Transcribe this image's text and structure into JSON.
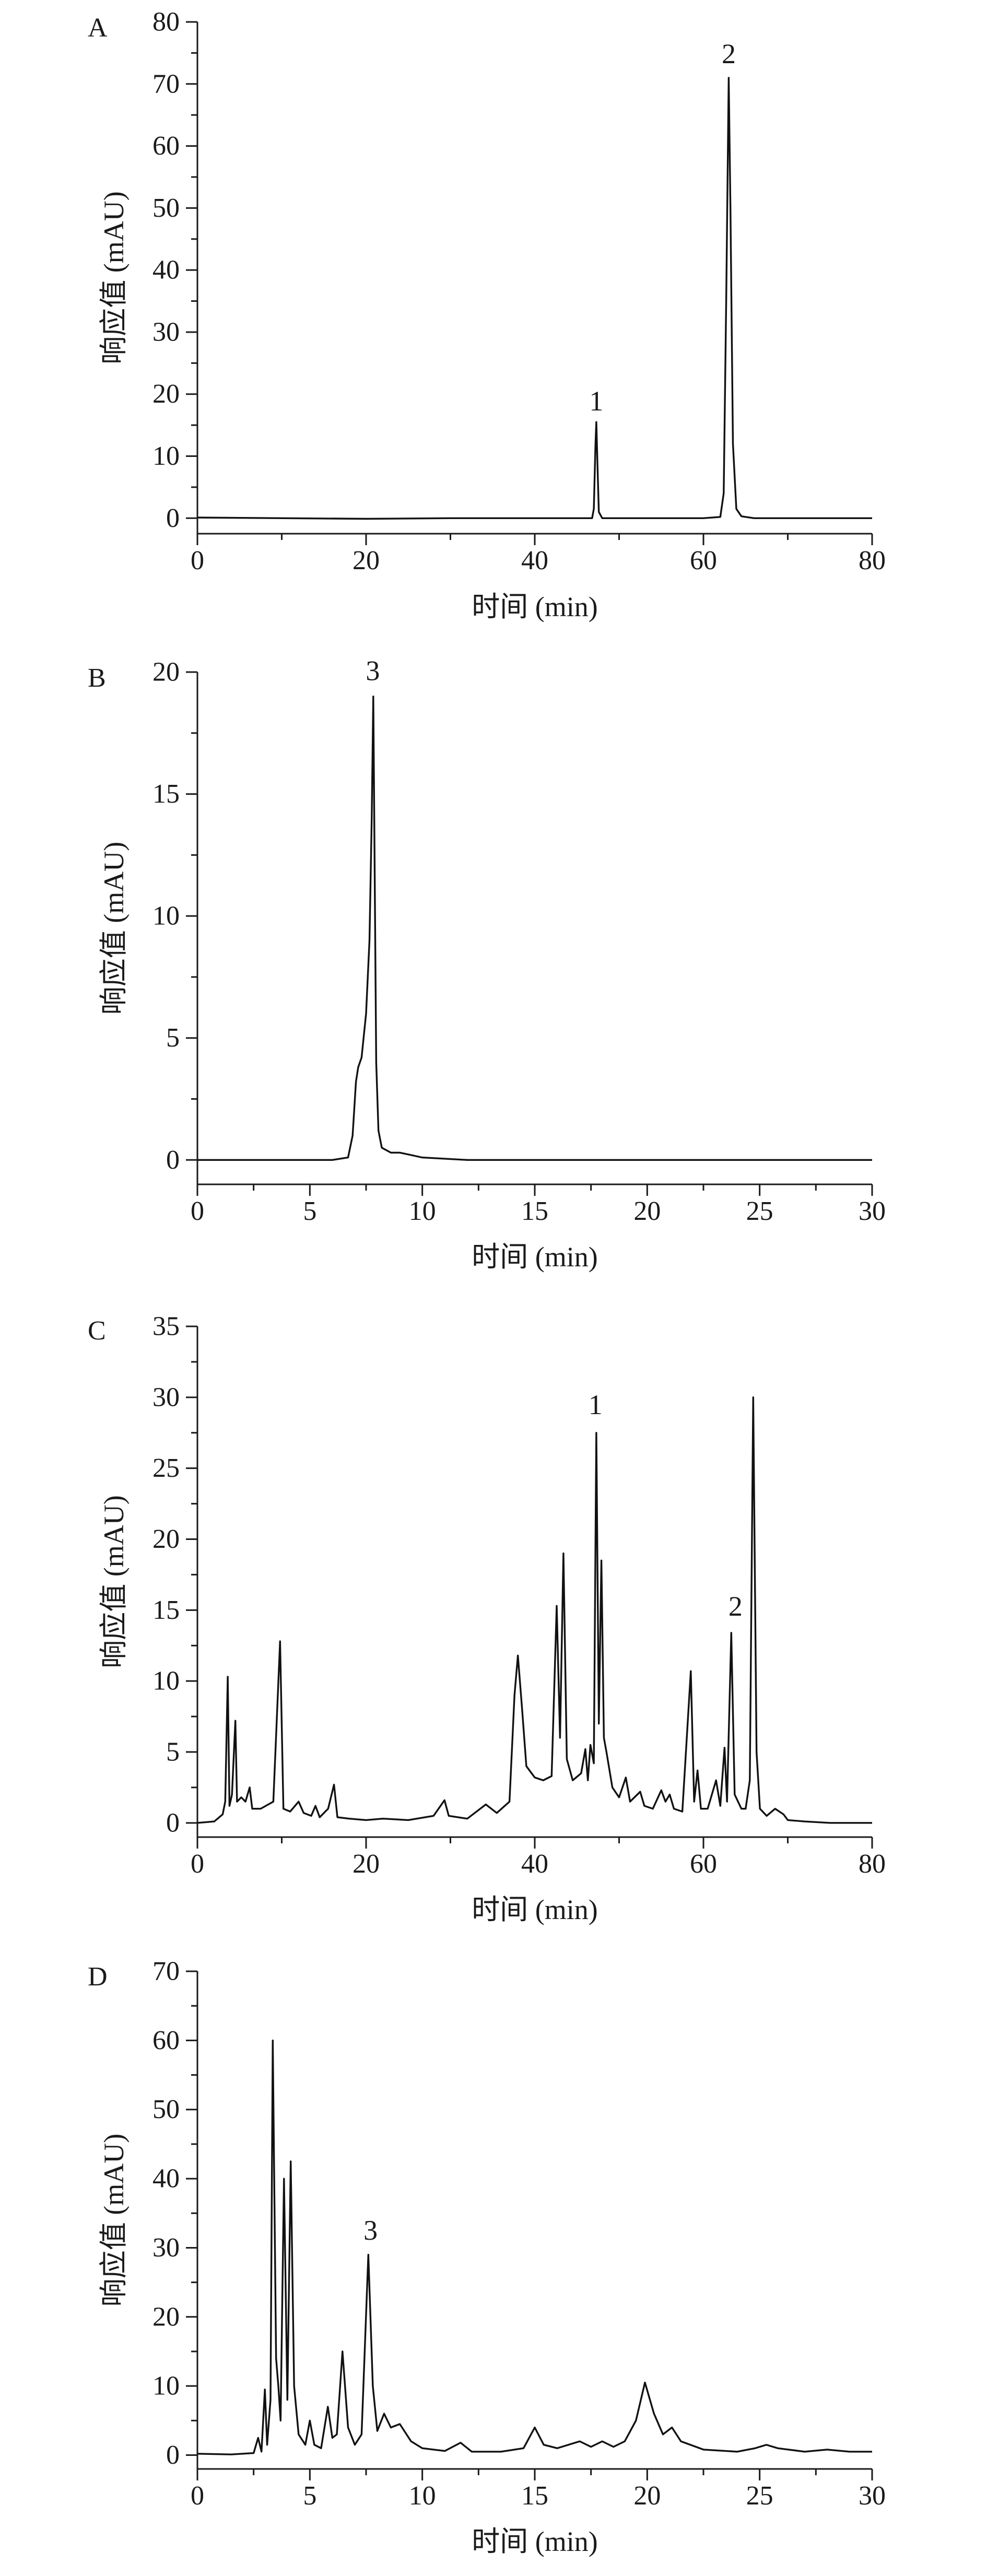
{
  "chart_data": [
    {
      "panel": "A",
      "type": "line",
      "xlabel": "时间 (min)",
      "ylabel": "响应值 (mAU)",
      "xlim": [
        0,
        80
      ],
      "ylim": [
        -2.5,
        80
      ],
      "xticks": [
        0,
        20,
        40,
        60,
        80
      ],
      "yticks": [
        0,
        10,
        20,
        30,
        40,
        50,
        60,
        70,
        80
      ],
      "peak_labels": [
        {
          "text": "1",
          "x": 47.3,
          "y": 15.5
        },
        {
          "text": "2",
          "x": 63.0,
          "y": 71.5
        }
      ],
      "series": [
        {
          "points": [
            [
              0,
              0.1
            ],
            [
              10,
              0.0
            ],
            [
              20,
              -0.1
            ],
            [
              30,
              0.0
            ],
            [
              40,
              0.0
            ],
            [
              45,
              0.0
            ],
            [
              46.8,
              0.0
            ],
            [
              47.0,
              1.5
            ],
            [
              47.2,
              12.0
            ],
            [
              47.3,
              15.5
            ],
            [
              47.45,
              8.0
            ],
            [
              47.6,
              1.0
            ],
            [
              48.0,
              0.0
            ],
            [
              55,
              0.0
            ],
            [
              60,
              0.0
            ],
            [
              62.0,
              0.2
            ],
            [
              62.4,
              4.0
            ],
            [
              62.7,
              35.0
            ],
            [
              63.0,
              71.0
            ],
            [
              63.2,
              50.0
            ],
            [
              63.5,
              12.0
            ],
            [
              63.9,
              1.5
            ],
            [
              64.5,
              0.3
            ],
            [
              66,
              0.0
            ],
            [
              70,
              0.0
            ],
            [
              75,
              0.0
            ],
            [
              80,
              0.0
            ]
          ]
        }
      ]
    },
    {
      "panel": "B",
      "type": "line",
      "xlabel": "时间 (min)",
      "ylabel": "响应值 (mAU)",
      "xlim": [
        0,
        30
      ],
      "ylim": [
        -1,
        20
      ],
      "xticks": [
        0,
        5,
        10,
        15,
        20,
        25,
        30
      ],
      "yticks": [
        0,
        5,
        10,
        15,
        20
      ],
      "peak_labels": [
        {
          "text": "3",
          "x": 7.8,
          "y": 19.2
        }
      ],
      "series": [
        {
          "points": [
            [
              0,
              0.0
            ],
            [
              3,
              0.0
            ],
            [
              6,
              0.0
            ],
            [
              6.7,
              0.1
            ],
            [
              6.9,
              1.0
            ],
            [
              7.05,
              3.2
            ],
            [
              7.15,
              3.8
            ],
            [
              7.3,
              4.2
            ],
            [
              7.5,
              6.0
            ],
            [
              7.65,
              9.0
            ],
            [
              7.75,
              14.0
            ],
            [
              7.82,
              19.0
            ],
            [
              7.88,
              12.0
            ],
            [
              7.95,
              4.0
            ],
            [
              8.05,
              1.2
            ],
            [
              8.2,
              0.5
            ],
            [
              8.6,
              0.3
            ],
            [
              9.0,
              0.3
            ],
            [
              9.5,
              0.2
            ],
            [
              10,
              0.1
            ],
            [
              12,
              0.0
            ],
            [
              15,
              0.0
            ],
            [
              20,
              0.0
            ],
            [
              25,
              0.0
            ],
            [
              30,
              0.0
            ]
          ]
        }
      ]
    },
    {
      "panel": "C",
      "type": "line",
      "xlabel": "时间 (min)",
      "ylabel": "响应值 (mAU)",
      "xlim": [
        0,
        80
      ],
      "ylim": [
        -1,
        35
      ],
      "xticks": [
        0,
        20,
        40,
        60,
        80
      ],
      "yticks": [
        0,
        5,
        10,
        15,
        20,
        25,
        30,
        35
      ],
      "peak_labels": [
        {
          "text": "1",
          "x": 47.2,
          "y": 28.0
        },
        {
          "text": "2",
          "x": 63.8,
          "y": 13.8
        }
      ],
      "series": [
        {
          "points": [
            [
              0,
              0.0
            ],
            [
              2.0,
              0.1
            ],
            [
              3.0,
              0.6
            ],
            [
              3.3,
              1.5
            ],
            [
              3.6,
              10.3
            ],
            [
              3.8,
              1.2
            ],
            [
              4.1,
              2.0
            ],
            [
              4.5,
              7.2
            ],
            [
              4.7,
              1.5
            ],
            [
              5.2,
              1.8
            ],
            [
              5.7,
              1.5
            ],
            [
              6.2,
              2.5
            ],
            [
              6.5,
              1.0
            ],
            [
              7.5,
              1.0
            ],
            [
              9.0,
              1.5
            ],
            [
              9.8,
              12.8
            ],
            [
              10.2,
              1.0
            ],
            [
              11.0,
              0.8
            ],
            [
              12.0,
              1.5
            ],
            [
              12.6,
              0.7
            ],
            [
              13.5,
              0.5
            ],
            [
              14.0,
              1.2
            ],
            [
              14.5,
              0.4
            ],
            [
              15.5,
              1.0
            ],
            [
              16.2,
              2.7
            ],
            [
              16.6,
              0.4
            ],
            [
              18.0,
              0.3
            ],
            [
              20,
              0.2
            ],
            [
              22,
              0.3
            ],
            [
              25,
              0.2
            ],
            [
              28,
              0.5
            ],
            [
              29.3,
              1.6
            ],
            [
              29.8,
              0.5
            ],
            [
              32,
              0.3
            ],
            [
              34.2,
              1.3
            ],
            [
              35.5,
              0.7
            ],
            [
              37.0,
              1.5
            ],
            [
              37.6,
              9.0
            ],
            [
              38.0,
              11.8
            ],
            [
              38.5,
              8.0
            ],
            [
              39.0,
              4.0
            ],
            [
              40.0,
              3.2
            ],
            [
              41.0,
              3.0
            ],
            [
              42.0,
              3.3
            ],
            [
              42.6,
              15.3
            ],
            [
              43.0,
              6.0
            ],
            [
              43.4,
              19.0
            ],
            [
              43.8,
              4.5
            ],
            [
              44.5,
              3.0
            ],
            [
              45.5,
              3.5
            ],
            [
              46.0,
              5.2
            ],
            [
              46.3,
              3.0
            ],
            [
              46.6,
              5.5
            ],
            [
              47.0,
              4.2
            ],
            [
              47.3,
              27.5
            ],
            [
              47.6,
              7.0
            ],
            [
              47.9,
              18.5
            ],
            [
              48.2,
              6.0
            ],
            [
              48.5,
              5.0
            ],
            [
              49.2,
              2.5
            ],
            [
              50.0,
              1.8
            ],
            [
              50.8,
              3.2
            ],
            [
              51.3,
              1.5
            ],
            [
              52.5,
              2.2
            ],
            [
              53.0,
              1.2
            ],
            [
              54.0,
              1.0
            ],
            [
              55.0,
              2.3
            ],
            [
              55.5,
              1.5
            ],
            [
              56.0,
              2.0
            ],
            [
              56.5,
              1.0
            ],
            [
              57.5,
              0.8
            ],
            [
              58.5,
              10.7
            ],
            [
              58.9,
              1.5
            ],
            [
              59.3,
              3.7
            ],
            [
              59.7,
              1.0
            ],
            [
              60.5,
              1.0
            ],
            [
              61.5,
              3.0
            ],
            [
              62.0,
              1.2
            ],
            [
              62.5,
              5.3
            ],
            [
              62.8,
              1.5
            ],
            [
              63.3,
              13.4
            ],
            [
              63.7,
              2.0
            ],
            [
              64.5,
              1.0
            ],
            [
              65.0,
              1.0
            ],
            [
              65.5,
              3.0
            ],
            [
              65.9,
              30.0
            ],
            [
              66.3,
              5.0
            ],
            [
              66.7,
              1.0
            ],
            [
              67.5,
              0.5
            ],
            [
              68.5,
              1.0
            ],
            [
              69.5,
              0.6
            ],
            [
              70,
              0.2
            ],
            [
              72,
              0.1
            ],
            [
              75,
              0.0
            ],
            [
              80,
              0.0
            ]
          ]
        }
      ]
    },
    {
      "panel": "D",
      "type": "line",
      "xlabel": "时间 (min)",
      "ylabel": "响应值 (mAU)",
      "xlim": [
        0,
        30
      ],
      "ylim": [
        -2,
        70
      ],
      "xticks": [
        0,
        5,
        10,
        15,
        20,
        25,
        30
      ],
      "yticks": [
        0,
        10,
        20,
        30,
        40,
        50,
        60,
        70
      ],
      "peak_labels": [
        {
          "text": "3",
          "x": 7.7,
          "y": 29.5
        }
      ],
      "series": [
        {
          "points": [
            [
              0,
              0.2
            ],
            [
              1.5,
              0.1
            ],
            [
              2.5,
              0.3
            ],
            [
              2.7,
              2.5
            ],
            [
              2.85,
              0.5
            ],
            [
              3.0,
              9.5
            ],
            [
              3.1,
              1.5
            ],
            [
              3.25,
              8.0
            ],
            [
              3.35,
              60.0
            ],
            [
              3.5,
              14.0
            ],
            [
              3.6,
              10.0
            ],
            [
              3.7,
              5.0
            ],
            [
              3.85,
              40.0
            ],
            [
              4.0,
              8.0
            ],
            [
              4.15,
              42.5
            ],
            [
              4.3,
              10.0
            ],
            [
              4.5,
              3.0
            ],
            [
              4.8,
              1.5
            ],
            [
              5.0,
              5.0
            ],
            [
              5.2,
              1.5
            ],
            [
              5.5,
              1.0
            ],
            [
              5.8,
              7.0
            ],
            [
              6.0,
              2.5
            ],
            [
              6.2,
              3.0
            ],
            [
              6.45,
              15.0
            ],
            [
              6.7,
              4.0
            ],
            [
              7.0,
              1.5
            ],
            [
              7.3,
              3.0
            ],
            [
              7.6,
              29.0
            ],
            [
              7.8,
              10.0
            ],
            [
              8.0,
              3.5
            ],
            [
              8.3,
              6.0
            ],
            [
              8.6,
              4.0
            ],
            [
              9.0,
              4.5
            ],
            [
              9.5,
              2.0
            ],
            [
              10.0,
              1.0
            ],
            [
              11.0,
              0.6
            ],
            [
              11.7,
              1.8
            ],
            [
              12.2,
              0.5
            ],
            [
              13.5,
              0.5
            ],
            [
              14.5,
              1.0
            ],
            [
              15.0,
              4.0
            ],
            [
              15.4,
              1.5
            ],
            [
              16.0,
              1.0
            ],
            [
              17.0,
              2.0
            ],
            [
              17.5,
              1.2
            ],
            [
              18.0,
              2.0
            ],
            [
              18.5,
              1.2
            ],
            [
              19.0,
              2.0
            ],
            [
              19.5,
              5.0
            ],
            [
              19.9,
              10.5
            ],
            [
              20.3,
              6.0
            ],
            [
              20.7,
              3.0
            ],
            [
              21.1,
              4.0
            ],
            [
              21.5,
              2.0
            ],
            [
              22.5,
              0.8
            ],
            [
              24.0,
              0.5
            ],
            [
              24.8,
              1.0
            ],
            [
              25.3,
              1.5
            ],
            [
              25.8,
              1.0
            ],
            [
              27.0,
              0.5
            ],
            [
              28.0,
              0.8
            ],
            [
              29.0,
              0.5
            ],
            [
              30.0,
              0.5
            ]
          ]
        }
      ]
    }
  ]
}
